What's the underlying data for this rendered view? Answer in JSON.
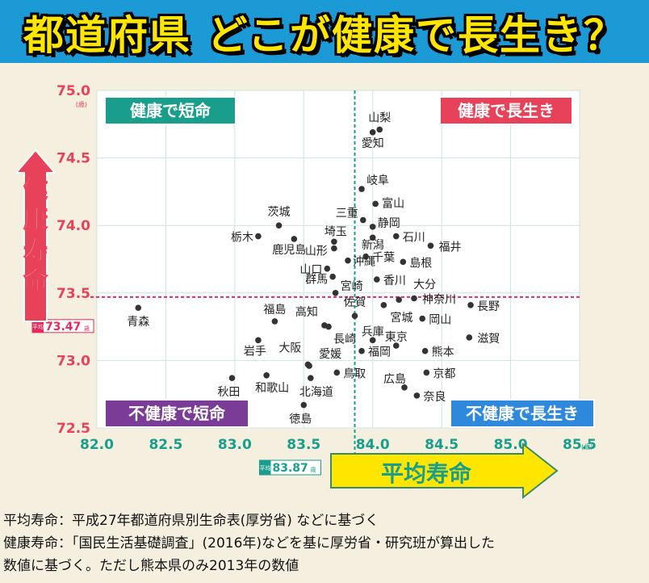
{
  "header": {
    "title": "都道府県 どこが健康で長生き？"
  },
  "chart_data": {
    "type": "scatter",
    "xlabel": "平均寿命",
    "ylabel": "健康寿命",
    "x_unit": "(歳)",
    "y_unit": "(歳)",
    "xlim": [
      82.0,
      85.5
    ],
    "ylim": [
      72.5,
      75.0
    ],
    "x_ticks": [
      "82.0",
      "82.5",
      "83.0",
      "83.5",
      "84.0",
      "84.5",
      "85.0",
      "85.5"
    ],
    "y_ticks": [
      "72.5",
      "73.0",
      "73.5",
      "74.0",
      "74.5",
      "75.0"
    ],
    "avg_x": {
      "prefix": "平均",
      "value": 83.87,
      "label": "83.87",
      "unit": "歳"
    },
    "avg_y": {
      "prefix": "平均",
      "value": 73.47,
      "label": "73.47",
      "unit": "歳"
    },
    "quadrants": {
      "top_left": "健康で短命",
      "top_right": "健康で長生き",
      "bottom_left": "不健康で短命",
      "bottom_right": "不健康で長生き"
    },
    "colors": {
      "teal": "#1a9e8c",
      "red": "#e8425a",
      "purple": "#7a3c97",
      "blue": "#2e88dc",
      "avg_red": "#e8285a",
      "axis_green": "#1a9e8c",
      "arrow_yellow": "#ffe600"
    },
    "points": [
      {
        "name": "山梨",
        "x": 84.05,
        "y": 74.71
      },
      {
        "name": "愛知",
        "x": 84.0,
        "y": 74.69
      },
      {
        "name": "岐阜",
        "x": 83.92,
        "y": 74.27
      },
      {
        "name": "富山",
        "x": 84.02,
        "y": 74.16
      },
      {
        "name": "三重",
        "x": 83.93,
        "y": 74.04
      },
      {
        "name": "静岡",
        "x": 84.0,
        "y": 73.99
      },
      {
        "name": "茨城",
        "x": 83.32,
        "y": 74.0
      },
      {
        "name": "栃木",
        "x": 83.17,
        "y": 73.92
      },
      {
        "name": "鹿児島",
        "x": 83.43,
        "y": 73.9
      },
      {
        "name": "埼玉",
        "x": 83.72,
        "y": 73.88
      },
      {
        "name": "石川",
        "x": 84.17,
        "y": 73.92
      },
      {
        "name": "新潟",
        "x": 84.0,
        "y": 73.91
      },
      {
        "name": "福井",
        "x": 84.42,
        "y": 73.85
      },
      {
        "name": "山形",
        "x": 83.72,
        "y": 73.83
      },
      {
        "name": "千葉",
        "x": 83.95,
        "y": 73.77
      },
      {
        "name": "島根",
        "x": 84.22,
        "y": 73.73
      },
      {
        "name": "山口",
        "x": 83.67,
        "y": 73.68
      },
      {
        "name": "沖縄",
        "x": 83.82,
        "y": 73.74
      },
      {
        "name": "香川",
        "x": 84.03,
        "y": 73.6
      },
      {
        "name": "群馬",
        "x": 83.71,
        "y": 73.62
      },
      {
        "name": "宮崎",
        "x": 83.73,
        "y": 73.5
      },
      {
        "name": "大分",
        "x": 84.19,
        "y": 73.45
      },
      {
        "name": "神奈川",
        "x": 84.3,
        "y": 73.46
      },
      {
        "name": "長野",
        "x": 84.71,
        "y": 73.41
      },
      {
        "name": "青森",
        "x": 82.3,
        "y": 73.39
      },
      {
        "name": "佐賀",
        "x": 83.87,
        "y": 73.33
      },
      {
        "name": "宮城",
        "x": 84.08,
        "y": 73.41
      },
      {
        "name": "福島",
        "x": 83.29,
        "y": 73.29
      },
      {
        "name": "岡山",
        "x": 84.36,
        "y": 73.31
      },
      {
        "name": "高知",
        "x": 83.65,
        "y": 73.26
      },
      {
        "name": "長崎",
        "x": 83.68,
        "y": 73.25
      },
      {
        "name": "兵庫",
        "x": 84.0,
        "y": 73.15
      },
      {
        "name": "東京",
        "x": 84.17,
        "y": 73.11
      },
      {
        "name": "滋賀",
        "x": 84.7,
        "y": 73.17
      },
      {
        "name": "岩手",
        "x": 83.17,
        "y": 73.15
      },
      {
        "name": "福岡",
        "x": 83.92,
        "y": 73.07
      },
      {
        "name": "熊本",
        "x": 84.38,
        "y": 73.07
      },
      {
        "name": "大阪",
        "x": 83.53,
        "y": 72.97
      },
      {
        "name": "愛媛",
        "x": 83.54,
        "y": 72.96
      },
      {
        "name": "鳥取",
        "x": 83.74,
        "y": 72.91
      },
      {
        "name": "京都",
        "x": 84.39,
        "y": 72.91
      },
      {
        "name": "秋田",
        "x": 82.98,
        "y": 72.87
      },
      {
        "name": "和歌山",
        "x": 83.23,
        "y": 72.89
      },
      {
        "name": "北海道",
        "x": 83.55,
        "y": 72.87
      },
      {
        "name": "広島",
        "x": 84.23,
        "y": 72.8
      },
      {
        "name": "奈良",
        "x": 84.32,
        "y": 72.74
      },
      {
        "name": "徳島",
        "x": 83.5,
        "y": 72.67
      }
    ]
  },
  "footer": {
    "line1": "平均寿命：平成27年都道府県別生命表(厚労省) などに基づく",
    "line2": "健康寿命：「国民生活基礎調査」(2016年)などを基に厚労省・研究班が算出した",
    "line3": "数値に基づく。ただし熊本県のみ2013年の数値"
  }
}
